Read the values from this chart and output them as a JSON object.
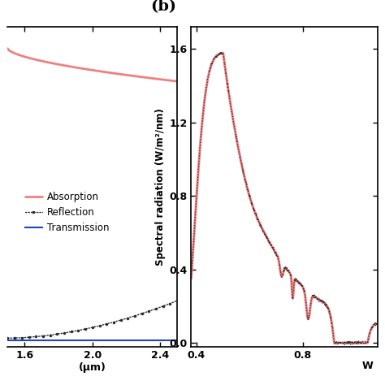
{
  "panel_a": {
    "xlabel": "(μm)",
    "xlim": [
      1.5,
      2.5
    ],
    "ylim": [
      -0.02,
      1.05
    ],
    "xticks": [
      1.6,
      2.0,
      2.4
    ],
    "xticklabels": [
      "1.6",
      "2.0",
      "2.4"
    ],
    "absorption_color": "#F08080",
    "reflection_color": "#2a2a2a",
    "transmission_color": "#2244BB",
    "legend_labels": [
      "Absorption",
      "Reflection",
      "Transmission"
    ]
  },
  "panel_b": {
    "label": "(b)",
    "ylabel": "Spectral radiation (W/m²/nm)",
    "xlim": [
      0.38,
      1.08
    ],
    "ylim": [
      -0.02,
      1.72
    ],
    "yticks": [
      0.0,
      0.4,
      0.8,
      1.2,
      1.6
    ],
    "xticks": [
      0.4,
      0.8
    ],
    "xticklabels": [
      "0.4",
      "0.8"
    ],
    "solar_color": "#F08080",
    "am15_color": "#1a1a1a"
  },
  "background_color": "#ffffff"
}
